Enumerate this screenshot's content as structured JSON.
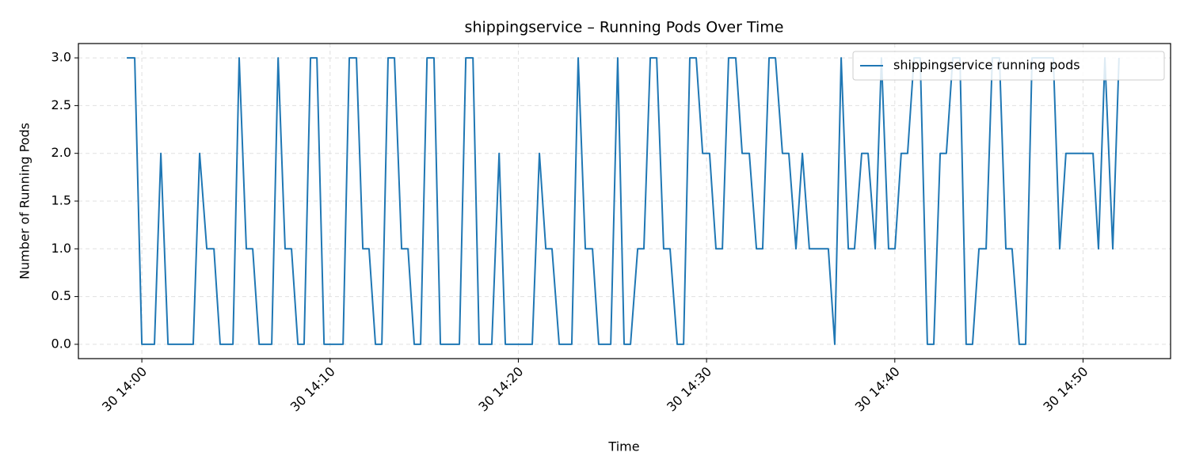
{
  "chart_data": {
    "type": "line",
    "title": "shippingservice – Running Pods Over Time",
    "x_label": "Time",
    "y_label": "Number of Running Pods",
    "x": [
      -0.8,
      -0.38,
      0,
      0.67,
      1.01,
      1.39,
      2.73,
      3.07,
      3.45,
      3.83,
      4.16,
      4.84,
      5.17,
      5.55,
      5.89,
      6.23,
      6.9,
      7.24,
      7.61,
      7.95,
      8.29,
      8.62,
      8.96,
      9.3,
      9.68,
      10.69,
      11.02,
      11.4,
      11.74,
      12.07,
      12.41,
      12.75,
      13.08,
      13.42,
      13.8,
      14.14,
      14.47,
      14.81,
      15.15,
      15.52,
      15.86,
      16.87,
      17.21,
      17.59,
      17.92,
      18.59,
      18.98,
      19.31,
      20.74,
      21.12,
      21.46,
      21.79,
      22.17,
      22.84,
      23.18,
      23.56,
      23.94,
      24.27,
      24.91,
      25.28,
      25.62,
      25.96,
      26.34,
      26.67,
      27.01,
      27.35,
      27.72,
      28.06,
      28.44,
      28.78,
      29.11,
      29.45,
      29.79,
      30.16,
      30.5,
      30.84,
      31.17,
      31.55,
      31.89,
      32.27,
      32.65,
      32.98,
      33.32,
      33.66,
      34.03,
      34.37,
      34.75,
      35.09,
      35.46,
      36.47,
      36.81,
      37.15,
      37.53,
      37.86,
      38.24,
      38.58,
      38.96,
      39.29,
      39.67,
      40.01,
      40.34,
      40.68,
      41.02,
      41.35,
      41.73,
      42.07,
      42.41,
      42.74,
      43.08,
      43.46,
      43.79,
      44.13,
      44.47,
      44.85,
      45.18,
      45.56,
      45.9,
      46.23,
      46.61,
      46.95,
      47.29,
      48.42,
      48.76,
      49.09,
      50.53,
      50.82,
      51.16,
      51.58,
      51.91
    ],
    "series": [
      {
        "name": "shippingservice running pods",
        "color": "#1f77b4",
        "values": [
          3,
          3,
          0,
          0,
          2,
          0,
          0,
          2,
          1,
          1,
          0,
          0,
          3,
          1,
          1,
          0,
          0,
          3,
          1,
          1,
          0,
          0,
          3,
          3,
          0,
          0,
          3,
          3,
          1,
          1,
          0,
          0,
          3,
          3,
          1,
          1,
          0,
          0,
          3,
          3,
          0,
          0,
          3,
          3,
          0,
          0,
          2,
          0,
          0,
          2,
          1,
          1,
          0,
          0,
          3,
          1,
          1,
          0,
          0,
          3,
          0,
          0,
          1,
          1,
          3,
          3,
          1,
          1,
          0,
          0,
          3,
          3,
          2,
          2,
          1,
          1,
          3,
          3,
          2,
          2,
          1,
          1,
          3,
          3,
          2,
          2,
          1,
          2,
          1,
          1,
          0,
          3,
          1,
          1,
          2,
          2,
          1,
          3,
          1,
          1,
          2,
          2,
          3,
          3,
          0,
          0,
          2,
          2,
          3,
          3,
          0,
          0,
          1,
          1,
          3,
          3,
          1,
          1,
          0,
          0,
          3,
          3,
          1,
          2,
          2,
          1,
          3,
          1,
          3
        ]
      }
    ],
    "xlim": [
      -3.37,
      54.65
    ],
    "xticks": [
      {
        "value": 0,
        "label": "30 14:00"
      },
      {
        "value": 10,
        "label": "30 14:10"
      },
      {
        "value": 20,
        "label": "30 14:20"
      },
      {
        "value": 30,
        "label": "30 14:30"
      },
      {
        "value": 40,
        "label": "30 14:40"
      },
      {
        "value": 50,
        "label": "30 14:50"
      }
    ],
    "ylim": [
      -0.15,
      3.15
    ],
    "yticks": [
      {
        "value": 0,
        "label": "0.0"
      },
      {
        "value": 0.5,
        "label": "0.5"
      },
      {
        "value": 1,
        "label": "1.0"
      },
      {
        "value": 1.5,
        "label": "1.5"
      },
      {
        "value": 2,
        "label": "2.0"
      },
      {
        "value": 2.5,
        "label": "2.5"
      },
      {
        "value": 3,
        "label": "3.0"
      }
    ],
    "grid": true,
    "legend": "upper right"
  }
}
